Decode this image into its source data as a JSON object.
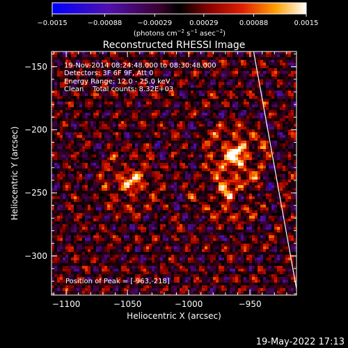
{
  "chart_data": {
    "type": "heatmap",
    "title": "Reconstructed RHESSI Image",
    "xlabel": "Heliocentric X (arcsec)",
    "ylabel": "Heliocentric Y (arcsec)",
    "xlim": [
      -1112,
      -912
    ],
    "ylim": [
      -331,
      -138
    ],
    "x_ticks": [
      -1100,
      -1050,
      -1000,
      -950
    ],
    "x_tick_labels": [
      "−1100",
      "−1050",
      "−1000",
      "−950"
    ],
    "y_ticks": [
      -150,
      -200,
      -250,
      -300
    ],
    "y_tick_labels": [
      "−150",
      "−200",
      "−250",
      "−300"
    ],
    "colorbar": {
      "min": -0.0015,
      "max": 0.0015,
      "ticks": [
        -0.0015,
        -0.00088,
        -0.00029,
        0.00029,
        0.00088,
        0.0015
      ],
      "tick_labels": [
        "−0.0015",
        "−0.00088",
        "−0.00029",
        "0.00029",
        "0.00088",
        "0.0015"
      ],
      "unit_prefix": "(photons cm",
      "unit_exp1": "−2",
      "unit_mid1": " s",
      "unit_exp2": "−1",
      "unit_mid2": " asec",
      "unit_exp3": "−2",
      "unit_suffix": ")"
    },
    "annotations": {
      "time": "19-Nov-2014 08:24:48.000 to 08:30:48.000",
      "detectors": "Detectors: 3F 6F 9F, Att 0",
      "energy": "Energy Range: 12.0 - 25.0 keV",
      "clean": "Clean    Total counts: 8.32E+03",
      "peak": "Position of Peak = [-963,-218]"
    },
    "sources": [
      {
        "x": -1048,
        "y": -240,
        "peak": 0.00105
      },
      {
        "x": -963,
        "y": -218,
        "peak": 0.0015
      },
      {
        "x": -970,
        "y": -250,
        "peak": 0.0009
      }
    ],
    "limb_line": [
      [
        -947,
        -138
      ],
      [
        -912,
        -326
      ]
    ],
    "grid": false
  },
  "footer": {
    "date": "19-May-2022 17:13"
  }
}
